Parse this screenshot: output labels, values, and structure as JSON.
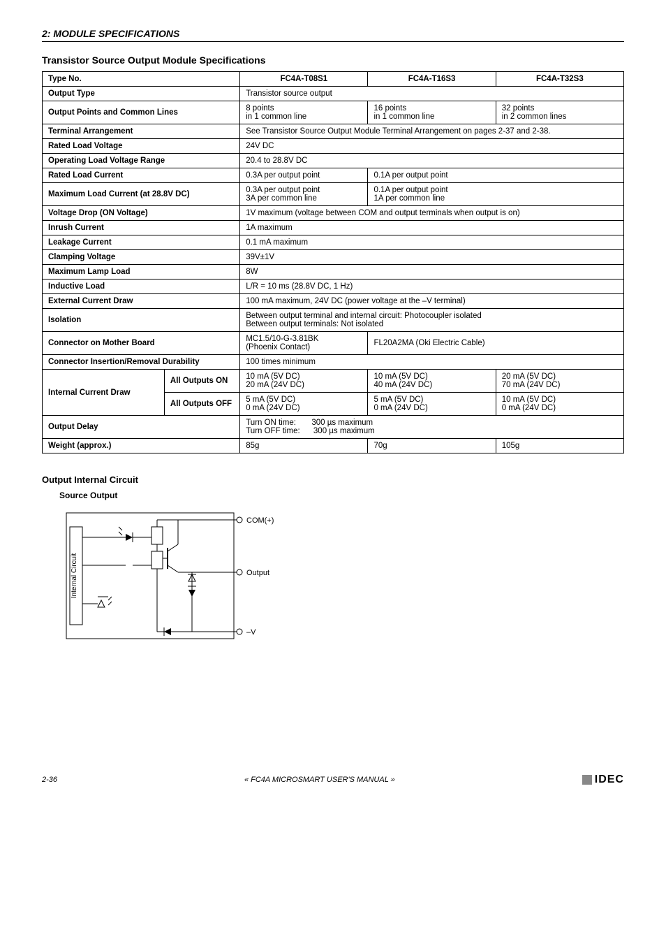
{
  "header": {
    "section": "2: MODULE SPECIFICATIONS"
  },
  "title": "Transistor Source Output Module Specifications",
  "table": {
    "rows": [
      {
        "label": "Type No.",
        "v1": "FC4A-T08S1",
        "v2": "FC4A-T16S3",
        "v3": "FC4A-T32S3",
        "header": true
      },
      {
        "label": "Output Type",
        "span": "Transistor source output"
      },
      {
        "label": "Output Points and Common Lines",
        "v1": "8 points\nin 1 common line",
        "v2": "16 points\nin 1 common line",
        "v3": "32 points\nin 2 common lines"
      },
      {
        "label": "Terminal Arrangement",
        "span": "See Transistor Source Output Module Terminal Arrangement on pages 2-37 and 2-38."
      },
      {
        "label": "Rated Load Voltage",
        "span": "24V DC"
      },
      {
        "label": "Operating Load Voltage Range",
        "span": "20.4 to 28.8V DC"
      },
      {
        "label": "Rated Load Current",
        "v1": "0.3A per output point",
        "v23": "0.1A per output point"
      },
      {
        "label": "Maximum Load Current (at 28.8V DC)",
        "v1": "0.3A per output point\n3A per common line",
        "v23": "0.1A per output point\n1A per common line"
      },
      {
        "label": "Voltage Drop (ON Voltage)",
        "span": "1V maximum (voltage between COM and output terminals when output is on)"
      },
      {
        "label": "Inrush Current",
        "span": "1A maximum"
      },
      {
        "label": "Leakage Current",
        "span": "0.1 mA maximum"
      },
      {
        "label": "Clamping Voltage",
        "span": "39V±1V"
      },
      {
        "label": "Maximum Lamp Load",
        "span": "8W"
      },
      {
        "label": "Inductive Load",
        "span": "L/R = 10 ms (28.8V DC, 1 Hz)"
      },
      {
        "label": "External Current Draw",
        "span": "100 mA maximum, 24V DC (power voltage at the –V terminal)"
      },
      {
        "label": "Isolation",
        "span": "Between output terminal and internal circuit:  Photocoupler isolated\nBetween output terminals:                                    Not isolated"
      },
      {
        "label": "Connector on Mother Board",
        "v1": "MC1.5/10-G-3.81BK\n(Phoenix Contact)",
        "v23": "FL20A2MA (Oki Electric Cable)"
      },
      {
        "label": "Connector Insertion/Removal Durability",
        "span": "100 times minimum"
      }
    ],
    "internal_current": {
      "label": "Internal Current Draw",
      "on": {
        "sub": "All Outputs ON",
        "v1": "10 mA (5V DC)\n20 mA (24V DC)",
        "v2": "10 mA (5V DC)\n40 mA (24V DC)",
        "v3": "20 mA (5V DC)\n70 mA (24V DC)"
      },
      "off": {
        "sub": "All Outputs OFF",
        "v1": "5 mA (5V DC)\n0 mA (24V DC)",
        "v2": "5 mA (5V DC)\n0 mA (24V DC)",
        "v3": "10 mA (5V DC)\n0 mA (24V DC)"
      }
    },
    "output_delay": {
      "label": "Output Delay",
      "span": "Turn ON time:       300 µs maximum\nTurn OFF time:      300 µs maximum"
    },
    "weight": {
      "label": "Weight (approx.)",
      "v1": "85g",
      "v2": "70g",
      "v3": "105g"
    }
  },
  "circuit": {
    "title": "Output Internal Circuit",
    "subtitle": "Source Output",
    "labels": {
      "internal": "Internal Circuit",
      "com": "COM(+)",
      "output": "Output",
      "minus_v": "–V"
    }
  },
  "footer": {
    "page": "2-36",
    "center": "« FC4A MICROSMART USER'S MANUAL »",
    "brand": "IDEC"
  },
  "colors": {
    "border": "#000000",
    "text": "#000000",
    "background": "#ffffff",
    "footer_box": "#888888"
  },
  "fonts": {
    "body_size": 12,
    "table_size": 11.5,
    "title_size": 14
  }
}
